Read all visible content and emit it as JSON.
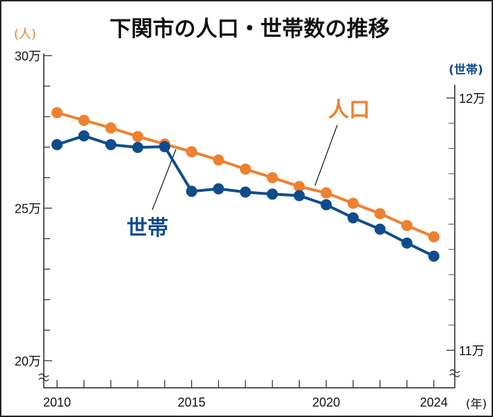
{
  "chart_data": {
    "type": "line",
    "title": "下関市の人口・世帯数の推移",
    "x": [
      2010,
      2011,
      2012,
      2013,
      2014,
      2015,
      2016,
      2017,
      2018,
      2019,
      2020,
      2021,
      2022,
      2023,
      2024
    ],
    "x_tick_labels": [
      "2010",
      "2015",
      "2020",
      "2024"
    ],
    "x_unit": "(年)",
    "left_axis": {
      "unit": "(人)",
      "range": [
        200000,
        300000
      ],
      "tick_labels": [
        "30万",
        "25万",
        "20万"
      ],
      "tick_values": [
        300000,
        250000,
        200000
      ],
      "minor_step": 10000
    },
    "right_axis": {
      "unit": "(世帯)",
      "range": [
        109000,
        120500
      ],
      "tick_labels": [
        "12万",
        "11万"
      ],
      "tick_values": [
        120000,
        110000
      ],
      "minor_step": 1000
    },
    "series": [
      {
        "name": "人口",
        "axis": "left",
        "color": "#ee8030",
        "values": [
          281300,
          278800,
          276300,
          273500,
          271000,
          268500,
          265800,
          262800,
          260000,
          257100,
          255000,
          251600,
          248200,
          244300,
          240600
        ]
      },
      {
        "name": "世帯",
        "axis": "right",
        "color": "#0f4c8c",
        "values": [
          118150,
          118500,
          118150,
          118040,
          118070,
          116300,
          116400,
          116270,
          116190,
          116130,
          115770,
          115250,
          114800,
          114250,
          113730
        ]
      }
    ],
    "grid": false
  }
}
